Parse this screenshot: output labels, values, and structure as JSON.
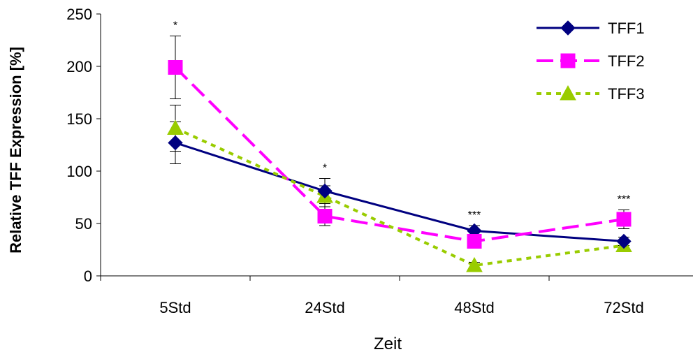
{
  "chart_data": {
    "type": "line",
    "xlabel": "Zeit",
    "ylabel": "Relative TFF Expression [%]",
    "categories": [
      "5Std",
      "24Std",
      "48Std",
      "72Std"
    ],
    "ylim": [
      0,
      250
    ],
    "yticks": [
      0,
      50,
      100,
      150,
      200,
      250
    ],
    "legend_position": "top-right",
    "grid": false,
    "series": [
      {
        "name": "TFF1",
        "values": [
          127,
          81,
          43,
          33
        ],
        "errors": [
          20,
          12,
          5,
          4
        ],
        "color": "#000080",
        "marker": "diamond",
        "dash": "solid"
      },
      {
        "name": "TFF2",
        "values": [
          199,
          57,
          33,
          54
        ],
        "errors": [
          30,
          9,
          5,
          9
        ],
        "color": "#ff00ff",
        "marker": "square",
        "dash": "long-dash"
      },
      {
        "name": "TFF3",
        "values": [
          141,
          76,
          10,
          29
        ],
        "errors": [
          22,
          10,
          3,
          3
        ],
        "color": "#99cc00",
        "marker": "triangle",
        "dash": "dotted"
      }
    ],
    "annotations": [
      {
        "category": "5Std",
        "text": "*"
      },
      {
        "category": "24Std",
        "text": "*"
      },
      {
        "category": "48Std",
        "text": "***"
      },
      {
        "category": "72Std",
        "text": "***"
      }
    ]
  }
}
